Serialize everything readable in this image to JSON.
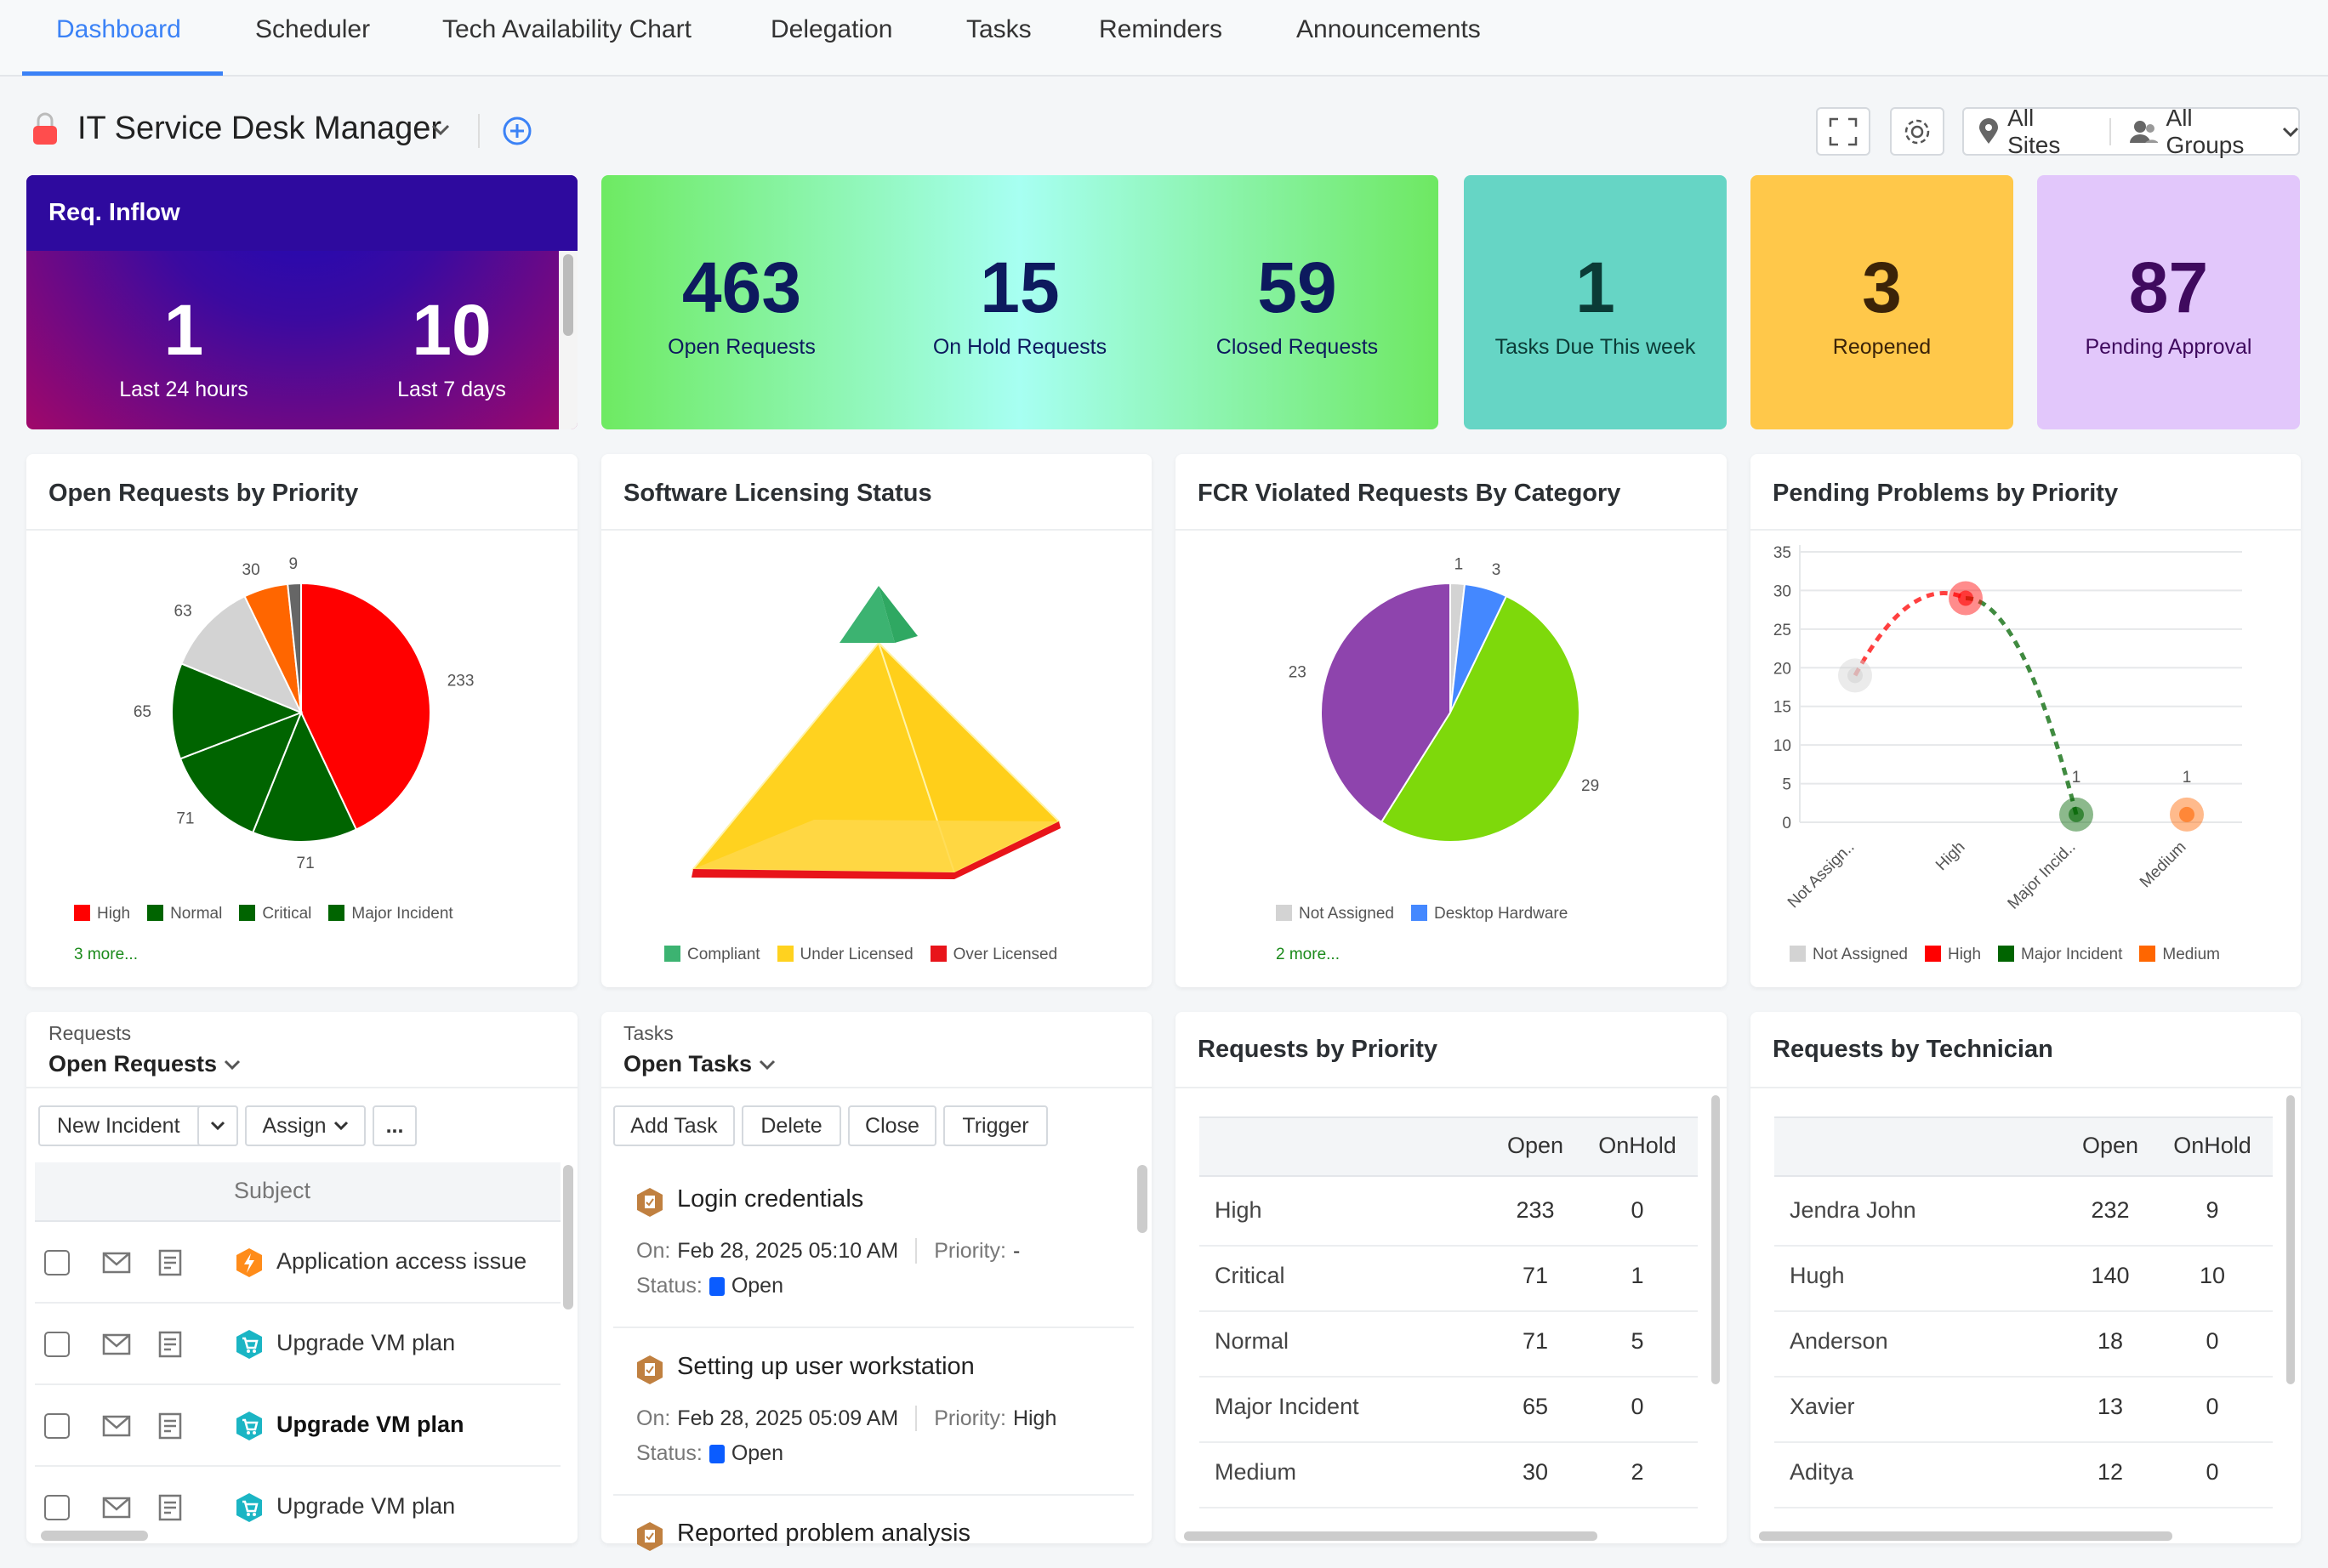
{
  "tabs": [
    {
      "label": "Dashboard",
      "active": true
    },
    {
      "label": "Scheduler"
    },
    {
      "label": "Tech Availability Chart"
    },
    {
      "label": "Delegation"
    },
    {
      "label": "Tasks"
    },
    {
      "label": "Reminders"
    },
    {
      "label": "Announcements"
    }
  ],
  "header": {
    "title": "IT Service Desk Manager",
    "sites": "All Sites",
    "groups": "All Groups"
  },
  "inflow": {
    "title": "Req. Inflow",
    "items": [
      {
        "value": "1",
        "label": "Last 24 hours"
      },
      {
        "value": "10",
        "label": "Last 7 days"
      }
    ]
  },
  "requests_summary": [
    {
      "value": "463",
      "label": "Open Requests"
    },
    {
      "value": "15",
      "label": "On Hold Requests"
    },
    {
      "value": "59",
      "label": "Closed Requests"
    }
  ],
  "kpis": [
    {
      "value": "1",
      "label": "Tasks Due This week",
      "bg": "#66d5c5",
      "color": "#0b3b36"
    },
    {
      "value": "3",
      "label": "Reopened",
      "bg": "#ffc84a",
      "color": "#3b2308"
    },
    {
      "value": "87",
      "label": "Pending Approval",
      "bg": "#e2c7fb",
      "color": "#3f0a5e"
    }
  ],
  "chart_data": [
    {
      "type": "pie",
      "title": "Open Requests by Priority",
      "slices": [
        {
          "name": "High",
          "value": 233,
          "color": "#ff0000"
        },
        {
          "name": "Normal",
          "value": 71,
          "color": "#006400"
        },
        {
          "name": "Critical",
          "value": 71,
          "color": "#006400"
        },
        {
          "name": "Major Incident",
          "value": 65,
          "color": "#006400"
        },
        {
          "value": 63,
          "color": "#d3d3d3"
        },
        {
          "value": 30,
          "color": "#ff6600"
        },
        {
          "value": 9,
          "color": "#666666"
        }
      ],
      "more": "3 more..."
    },
    {
      "type": "pyramid",
      "title": "Software Licensing Status",
      "segments": [
        {
          "name": "Compliant",
          "color": "#3cb371"
        },
        {
          "name": "Under Licensed",
          "color": "#ffd21f"
        },
        {
          "name": "Over Licensed",
          "color": "#e8141a"
        }
      ]
    },
    {
      "type": "pie",
      "title": "FCR Violated Requests By Category",
      "slices": [
        {
          "name": "Not Assigned",
          "value": 1,
          "color": "#d3d3d3"
        },
        {
          "name": "Desktop Hardware",
          "value": 3,
          "color": "#4488ff"
        },
        {
          "value": 29,
          "color": "#7ed90b"
        },
        {
          "value": 23,
          "color": "#8e44ad"
        }
      ],
      "more": "2 more..."
    },
    {
      "type": "line",
      "title": "Pending Problems by Priority",
      "categories": [
        "Not Assign..",
        "High",
        "Major Incid..",
        "Medium"
      ],
      "legend": [
        "Not Assigned",
        "High",
        "Major Incident",
        "Medium"
      ],
      "values": [
        19,
        29,
        1,
        1
      ],
      "data_labels": [
        "",
        "",
        "1",
        "1"
      ],
      "colors": [
        "#d3d3d3",
        "#ff0000",
        "#006400",
        "#ff6600"
      ],
      "ylim": [
        0,
        35
      ],
      "yticks": [
        0,
        5,
        10,
        15,
        20,
        25,
        30,
        35
      ],
      "grid": true,
      "legend_position": "bottom"
    }
  ],
  "requests_list": {
    "section": "Requests",
    "view": "Open Requests",
    "new_incident": "New Incident",
    "assign": "Assign",
    "more": "...",
    "column": "Subject",
    "rows": [
      {
        "subject": "Application access issue",
        "icon": "incident",
        "bold": false
      },
      {
        "subject": "Upgrade VM plan",
        "icon": "service",
        "bold": false
      },
      {
        "subject": "Upgrade VM plan",
        "icon": "service",
        "bold": true
      },
      {
        "subject": "Upgrade VM plan",
        "icon": "service",
        "bold": false
      }
    ]
  },
  "tasks_list": {
    "section": "Tasks",
    "view": "Open Tasks",
    "buttons": [
      "Add Task",
      "Delete",
      "Close",
      "Trigger"
    ],
    "on_label": "On:",
    "priority_label": "Priority:",
    "status_label": "Status:",
    "items": [
      {
        "title": "Login credentials",
        "on": "Feb 28, 2025 05:10 AM",
        "priority": "-",
        "status": "Open"
      },
      {
        "title": "Setting up user workstation",
        "on": "Feb 28, 2025 05:09 AM",
        "priority": "High",
        "status": "Open"
      },
      {
        "title": "Reported problem analysis"
      }
    ]
  },
  "by_priority": {
    "title": "Requests by Priority",
    "columns": [
      "",
      "Open",
      "OnHold"
    ],
    "rows": [
      [
        "High",
        "233",
        "0"
      ],
      [
        "Critical",
        "71",
        "1"
      ],
      [
        "Normal",
        "71",
        "5"
      ],
      [
        "Major Incident",
        "65",
        "0"
      ],
      [
        "Medium",
        "30",
        "2"
      ]
    ]
  },
  "by_technician": {
    "title": "Requests by Technician",
    "columns": [
      "",
      "Open",
      "OnHold"
    ],
    "rows": [
      [
        "Jendra John",
        "232",
        "9"
      ],
      [
        "Hugh",
        "140",
        "10"
      ],
      [
        "Anderson",
        "18",
        "0"
      ],
      [
        "Xavier",
        "13",
        "0"
      ],
      [
        "Aditya",
        "12",
        "0"
      ]
    ]
  }
}
